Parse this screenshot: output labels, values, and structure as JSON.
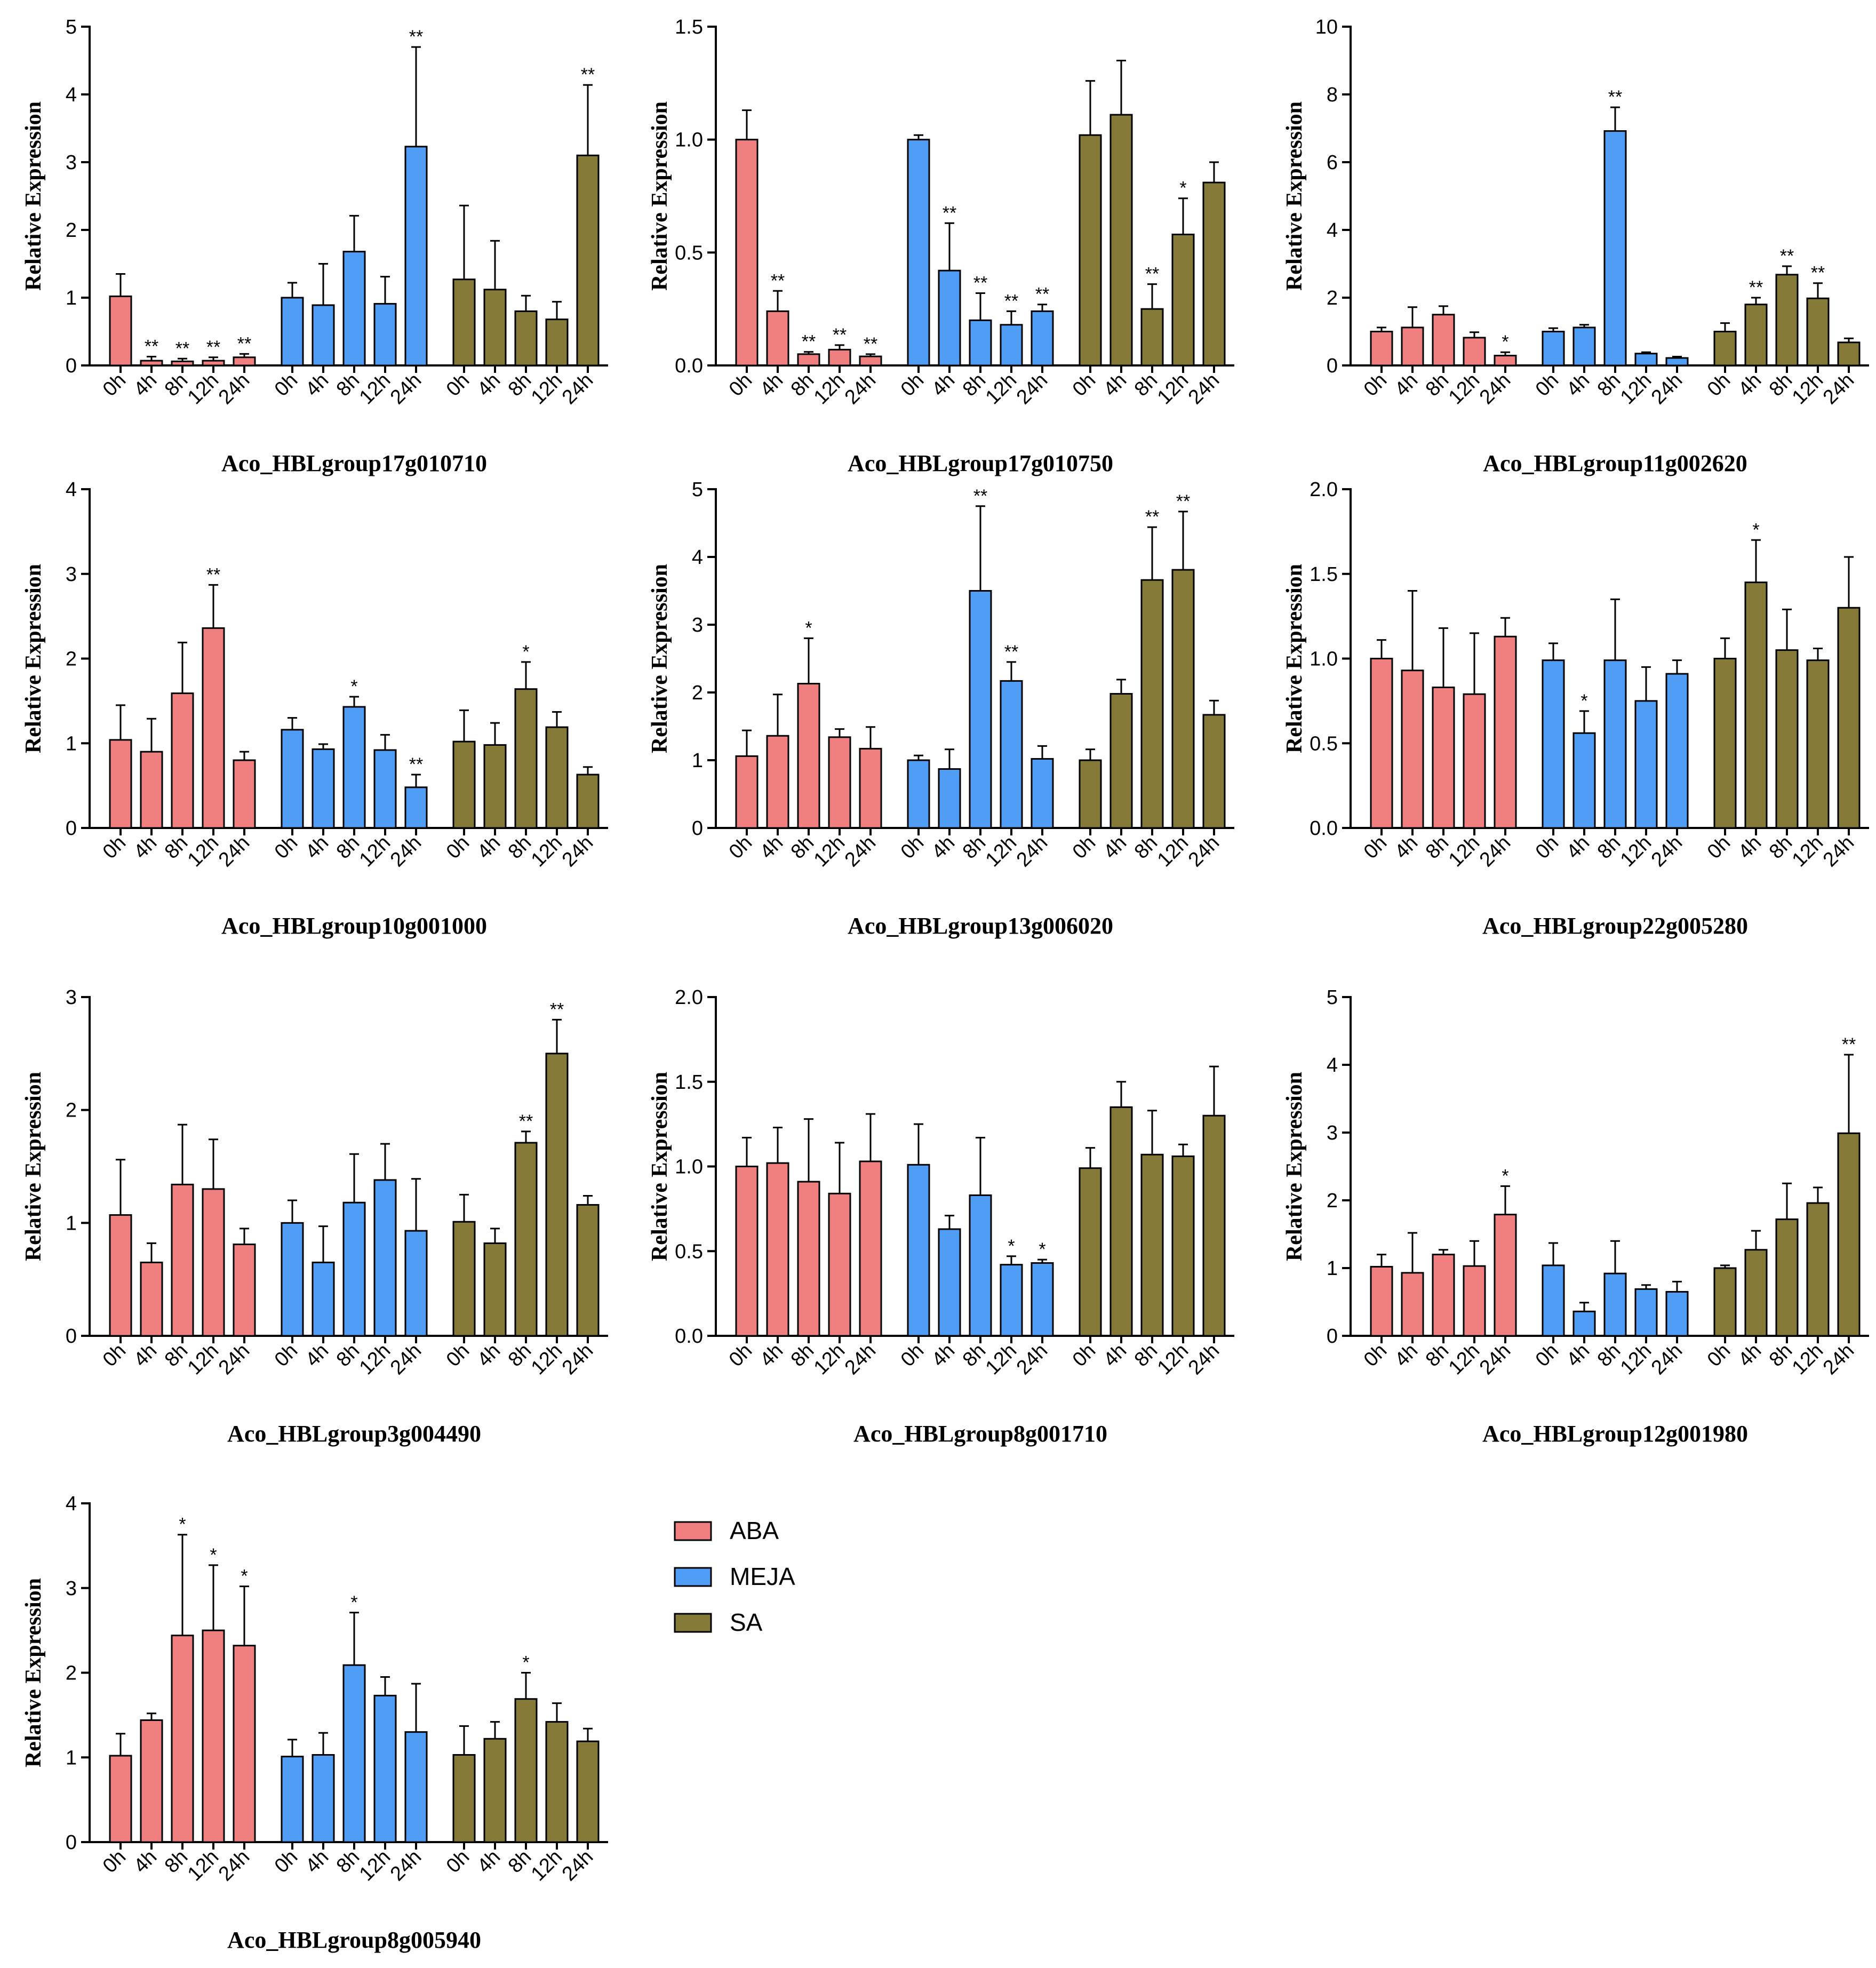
{
  "legend": [
    {
      "name": "ABA",
      "color": "#f08080"
    },
    {
      "name": "MEJA",
      "color": "#4f9df5"
    },
    {
      "name": "SA",
      "color": "#857a38"
    }
  ],
  "time_labels": [
    "0h",
    "4h",
    "8h",
    "12h",
    "24h"
  ],
  "chart_data": [
    {
      "type": "bar",
      "title": "Aco_HBLgroup17g010710",
      "ylabel": "Relative Expression",
      "ylim": [
        0,
        5
      ],
      "yticks": [
        "0",
        "1",
        "2",
        "3",
        "4",
        "5"
      ],
      "series": [
        {
          "name": "ABA",
          "values": [
            1.02,
            0.07,
            0.06,
            0.07,
            0.12
          ],
          "errors": [
            0.33,
            0.06,
            0.04,
            0.05,
            0.05
          ],
          "sig": [
            "",
            "**",
            "**",
            "**",
            "**"
          ]
        },
        {
          "name": "MEJA",
          "values": [
            1.0,
            0.89,
            1.68,
            0.91,
            3.23
          ],
          "errors": [
            0.22,
            0.61,
            0.53,
            0.4,
            1.47
          ],
          "sig": [
            "",
            "",
            "",
            "",
            "**"
          ]
        },
        {
          "name": "SA",
          "values": [
            1.27,
            1.12,
            0.8,
            0.68,
            3.1
          ],
          "errors": [
            1.09,
            0.72,
            0.23,
            0.26,
            1.04
          ],
          "sig": [
            "",
            "",
            "",
            "",
            "**"
          ]
        }
      ]
    },
    {
      "type": "bar",
      "title": "Aco_HBLgroup17g010750",
      "ylabel": "Relative Expression",
      "ylim": [
        0,
        1.5
      ],
      "yticks": [
        "0.0",
        "0.5",
        "1.0",
        "1.5"
      ],
      "series": [
        {
          "name": "ABA",
          "values": [
            1.0,
            0.24,
            0.05,
            0.07,
            0.04
          ],
          "errors": [
            0.13,
            0.09,
            0.01,
            0.02,
            0.01
          ],
          "sig": [
            "",
            "**",
            "**",
            "**",
            "**"
          ]
        },
        {
          "name": "MEJA",
          "values": [
            1.0,
            0.42,
            0.2,
            0.18,
            0.24
          ],
          "errors": [
            0.02,
            0.21,
            0.12,
            0.06,
            0.03
          ],
          "sig": [
            "",
            "**",
            "**",
            "**",
            "**"
          ]
        },
        {
          "name": "SA",
          "values": [
            1.02,
            1.11,
            0.25,
            0.58,
            0.81
          ],
          "errors": [
            0.24,
            0.24,
            0.11,
            0.16,
            0.09
          ],
          "sig": [
            "",
            "",
            "**",
            "*",
            ""
          ]
        }
      ]
    },
    {
      "type": "bar",
      "title": "Aco_HBLgroup11g002620",
      "ylabel": "Relative Expression",
      "ylim": [
        0,
        10
      ],
      "yticks": [
        "0",
        "2",
        "4",
        "6",
        "8",
        "10"
      ],
      "series": [
        {
          "name": "ABA",
          "values": [
            1.0,
            1.12,
            1.5,
            0.82,
            0.29
          ],
          "errors": [
            0.12,
            0.6,
            0.25,
            0.16,
            0.1
          ],
          "sig": [
            "",
            "",
            "",
            "",
            "*"
          ]
        },
        {
          "name": "MEJA",
          "values": [
            1.0,
            1.12,
            6.92,
            0.35,
            0.22
          ],
          "errors": [
            0.1,
            0.08,
            0.7,
            0.04,
            0.04
          ],
          "sig": [
            "",
            "",
            "**",
            "",
            ""
          ]
        },
        {
          "name": "SA",
          "values": [
            1.0,
            1.8,
            2.68,
            1.98,
            0.68
          ],
          "errors": [
            0.25,
            0.2,
            0.25,
            0.45,
            0.12
          ],
          "sig": [
            "",
            "**",
            "**",
            "**",
            ""
          ]
        }
      ]
    },
    {
      "type": "bar",
      "title": "Aco_HBLgroup10g001000",
      "ylabel": "Relative Expression",
      "ylim": [
        0,
        4
      ],
      "yticks": [
        "0",
        "1",
        "2",
        "3",
        "4"
      ],
      "series": [
        {
          "name": "ABA",
          "values": [
            1.04,
            0.9,
            1.59,
            2.36,
            0.8
          ],
          "errors": [
            0.41,
            0.39,
            0.6,
            0.51,
            0.1
          ],
          "sig": [
            "",
            "",
            "",
            "**",
            ""
          ]
        },
        {
          "name": "MEJA",
          "values": [
            1.16,
            0.93,
            1.43,
            0.92,
            0.48
          ],
          "errors": [
            0.14,
            0.06,
            0.12,
            0.18,
            0.15
          ],
          "sig": [
            "",
            "",
            "*",
            "",
            "**"
          ]
        },
        {
          "name": "SA",
          "values": [
            1.02,
            0.98,
            1.64,
            1.19,
            0.63
          ],
          "errors": [
            0.37,
            0.26,
            0.32,
            0.18,
            0.09
          ],
          "sig": [
            "",
            "",
            "*",
            "",
            ""
          ]
        }
      ]
    },
    {
      "type": "bar",
      "title": "Aco_HBLgroup13g006020",
      "ylabel": "Relative Expression",
      "ylim": [
        0,
        5
      ],
      "yticks": [
        "0",
        "1",
        "2",
        "3",
        "4",
        "5"
      ],
      "series": [
        {
          "name": "ABA",
          "values": [
            1.06,
            1.36,
            2.13,
            1.34,
            1.17
          ],
          "errors": [
            0.38,
            0.61,
            0.67,
            0.12,
            0.32
          ],
          "sig": [
            "",
            "",
            "*",
            "",
            ""
          ]
        },
        {
          "name": "MEJA",
          "values": [
            1.0,
            0.87,
            3.5,
            2.17,
            1.02
          ],
          "errors": [
            0.07,
            0.29,
            1.25,
            0.28,
            0.19
          ],
          "sig": [
            "",
            "",
            "**",
            "**",
            ""
          ]
        },
        {
          "name": "SA",
          "values": [
            1.0,
            1.98,
            3.66,
            3.81,
            1.67
          ],
          "errors": [
            0.16,
            0.21,
            0.78,
            0.86,
            0.21
          ],
          "sig": [
            "",
            "",
            "**",
            "**",
            ""
          ]
        }
      ]
    },
    {
      "type": "bar",
      "title": "Aco_HBLgroup22g005280",
      "ylabel": "Relative Expression",
      "ylim": [
        0,
        2.0
      ],
      "yticks": [
        "0.0",
        "0.5",
        "1.0",
        "1.5",
        "2.0"
      ],
      "series": [
        {
          "name": "ABA",
          "values": [
            1.0,
            0.93,
            0.83,
            0.79,
            1.13
          ],
          "errors": [
            0.11,
            0.47,
            0.35,
            0.36,
            0.11
          ],
          "sig": [
            "",
            "",
            "",
            "",
            ""
          ]
        },
        {
          "name": "MEJA",
          "values": [
            0.99,
            0.56,
            0.99,
            0.75,
            0.91
          ],
          "errors": [
            0.1,
            0.13,
            0.36,
            0.2,
            0.08
          ],
          "sig": [
            "",
            "*",
            "",
            "",
            ""
          ]
        },
        {
          "name": "SA",
          "values": [
            1.0,
            1.45,
            1.05,
            0.99,
            1.3
          ],
          "errors": [
            0.12,
            0.25,
            0.24,
            0.07,
            0.3
          ],
          "sig": [
            "",
            "*",
            "",
            "",
            ""
          ]
        }
      ]
    },
    {
      "type": "bar",
      "title": "Aco_HBLgroup3g004490",
      "ylabel": "Relative Expression",
      "ylim": [
        0,
        3
      ],
      "yticks": [
        "0",
        "1",
        "2",
        "3"
      ],
      "series": [
        {
          "name": "ABA",
          "values": [
            1.07,
            0.65,
            1.34,
            1.3,
            0.81
          ],
          "errors": [
            0.49,
            0.17,
            0.53,
            0.44,
            0.14
          ],
          "sig": [
            "",
            "",
            "",
            "",
            ""
          ]
        },
        {
          "name": "MEJA",
          "values": [
            1.0,
            0.65,
            1.18,
            1.38,
            0.93
          ],
          "errors": [
            0.2,
            0.32,
            0.43,
            0.32,
            0.46
          ],
          "sig": [
            "",
            "",
            "",
            "",
            ""
          ]
        },
        {
          "name": "SA",
          "values": [
            1.01,
            0.82,
            1.71,
            2.5,
            1.16
          ],
          "errors": [
            0.24,
            0.13,
            0.1,
            0.3,
            0.08
          ],
          "sig": [
            "",
            "",
            "**",
            "**",
            ""
          ]
        }
      ]
    },
    {
      "type": "bar",
      "title": "Aco_HBLgroup8g001710",
      "ylabel": "Relative Expression",
      "ylim": [
        0,
        2.0
      ],
      "yticks": [
        "0.0",
        "0.5",
        "1.0",
        "1.5",
        "2.0"
      ],
      "series": [
        {
          "name": "ABA",
          "values": [
            1.0,
            1.02,
            0.91,
            0.84,
            1.03
          ],
          "errors": [
            0.17,
            0.21,
            0.37,
            0.3,
            0.28
          ],
          "sig": [
            "",
            "",
            "",
            "",
            ""
          ]
        },
        {
          "name": "MEJA",
          "values": [
            1.01,
            0.63,
            0.83,
            0.42,
            0.43
          ],
          "errors": [
            0.24,
            0.08,
            0.34,
            0.05,
            0.02
          ],
          "sig": [
            "",
            "",
            "",
            "*",
            "*"
          ]
        },
        {
          "name": "SA",
          "values": [
            0.99,
            1.35,
            1.07,
            1.06,
            1.3
          ],
          "errors": [
            0.12,
            0.15,
            0.26,
            0.07,
            0.29
          ],
          "sig": [
            "",
            "",
            "",
            "",
            ""
          ]
        }
      ]
    },
    {
      "type": "bar",
      "title": "Aco_HBLgroup12g001980",
      "ylabel": "Relative Expression",
      "ylim": [
        0,
        5
      ],
      "yticks": [
        "0",
        "1",
        "2",
        "3",
        "4",
        "5"
      ],
      "series": [
        {
          "name": "ABA",
          "values": [
            1.02,
            0.93,
            1.2,
            1.03,
            1.79
          ],
          "errors": [
            0.18,
            0.59,
            0.07,
            0.37,
            0.42
          ],
          "sig": [
            "",
            "",
            "",
            "",
            "*"
          ]
        },
        {
          "name": "MEJA",
          "values": [
            1.04,
            0.36,
            0.92,
            0.69,
            0.65
          ],
          "errors": [
            0.33,
            0.13,
            0.48,
            0.06,
            0.15
          ],
          "sig": [
            "",
            "",
            "",
            "",
            ""
          ]
        },
        {
          "name": "SA",
          "values": [
            1.0,
            1.27,
            1.72,
            1.96,
            2.99
          ],
          "errors": [
            0.04,
            0.28,
            0.53,
            0.23,
            1.16
          ],
          "sig": [
            "",
            "",
            "",
            "",
            "**"
          ]
        }
      ]
    },
    {
      "type": "bar",
      "title": "Aco_HBLgroup8g005940",
      "ylabel": "Relative Expression",
      "ylim": [
        0,
        4
      ],
      "yticks": [
        "0",
        "1",
        "2",
        "3",
        "4"
      ],
      "series": [
        {
          "name": "ABA",
          "values": [
            1.02,
            1.44,
            2.44,
            2.5,
            2.32
          ],
          "errors": [
            0.26,
            0.08,
            1.19,
            0.77,
            0.7
          ],
          "sig": [
            "",
            "",
            "*",
            "*",
            "*"
          ]
        },
        {
          "name": "MEJA",
          "values": [
            1.01,
            1.03,
            2.09,
            1.73,
            1.3
          ],
          "errors": [
            0.2,
            0.26,
            0.62,
            0.22,
            0.57
          ],
          "sig": [
            "",
            "",
            "*",
            "",
            ""
          ]
        },
        {
          "name": "SA",
          "values": [
            1.03,
            1.22,
            1.69,
            1.42,
            1.19
          ],
          "errors": [
            0.34,
            0.2,
            0.31,
            0.22,
            0.15
          ],
          "sig": [
            "",
            "",
            "*",
            "",
            ""
          ]
        }
      ]
    }
  ]
}
